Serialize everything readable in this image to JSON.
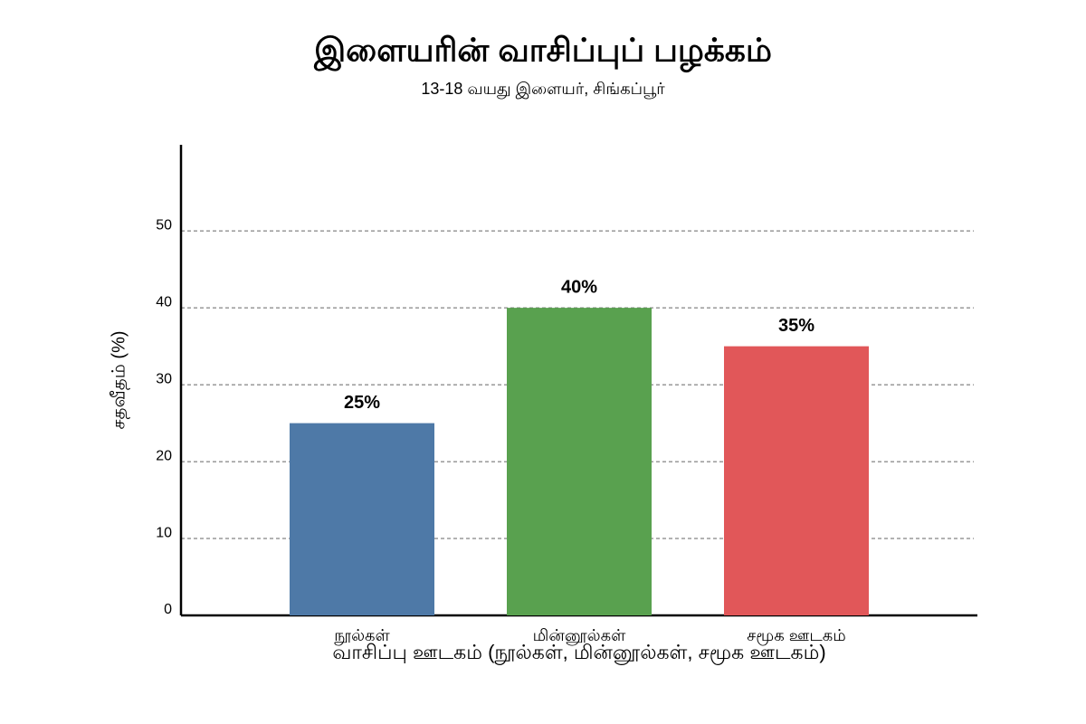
{
  "chart_data": {
    "type": "bar",
    "title": "இளையரின் வாசிப்புப் பழக்கம்",
    "subtitle": "13-18 வயது இளையர், சிங்கப்பூர்",
    "x_label": "வாசிப்பு ஊடகம் (நூல்கள், மின்னூல்கள், சமூக ஊடகம்)",
    "y_label": "சதவீதம் (%)",
    "categories": [
      "நூல்கள்",
      "மின்னூல்கள்",
      "சமூக ஊடகம்"
    ],
    "values": [
      25,
      40,
      35
    ],
    "value_labels": [
      "25%",
      "40%",
      "35%"
    ],
    "colors": [
      "#4e79a7",
      "#59a14f",
      "#e15759"
    ],
    "ylim": [
      0,
      61.2
    ],
    "yticks": [
      0,
      10,
      20,
      30,
      40,
      50
    ],
    "grid": true
  }
}
